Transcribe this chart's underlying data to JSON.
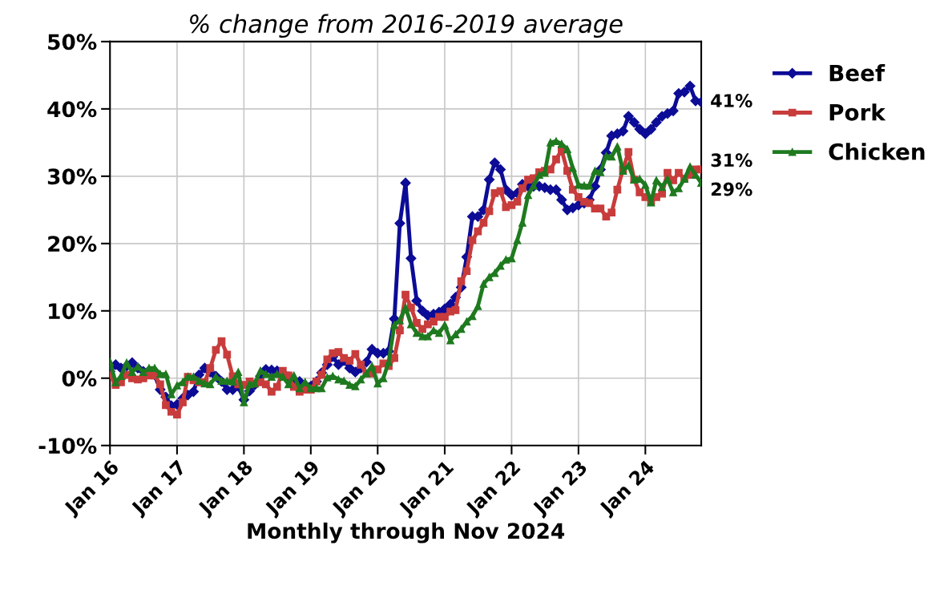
{
  "chart_data": {
    "type": "line",
    "title": "% change from 2016-2019 average",
    "xlabel": "Monthly through Nov 2024",
    "x": [
      "2016-01",
      "2016-02",
      "2016-03",
      "2016-04",
      "2016-05",
      "2016-06",
      "2016-07",
      "2016-08",
      "2016-09",
      "2016-10",
      "2016-11",
      "2016-12",
      "2017-01",
      "2017-02",
      "2017-03",
      "2017-04",
      "2017-05",
      "2017-06",
      "2017-07",
      "2017-08",
      "2017-09",
      "2017-10",
      "2017-11",
      "2017-12",
      "2018-01",
      "2018-02",
      "2018-03",
      "2018-04",
      "2018-05",
      "2018-06",
      "2018-07",
      "2018-08",
      "2018-09",
      "2018-10",
      "2018-11",
      "2018-12",
      "2019-01",
      "2019-02",
      "2019-03",
      "2019-04",
      "2019-05",
      "2019-06",
      "2019-07",
      "2019-08",
      "2019-09",
      "2019-10",
      "2019-11",
      "2019-12",
      "2020-01",
      "2020-02",
      "2020-03",
      "2020-04",
      "2020-05",
      "2020-06",
      "2020-07",
      "2020-08",
      "2020-09",
      "2020-10",
      "2020-11",
      "2020-12",
      "2021-01",
      "2021-02",
      "2021-03",
      "2021-04",
      "2021-05",
      "2021-06",
      "2021-07",
      "2021-08",
      "2021-09",
      "2021-10",
      "2021-11",
      "2021-12",
      "2022-01",
      "2022-02",
      "2022-03",
      "2022-04",
      "2022-05",
      "2022-06",
      "2022-07",
      "2022-08",
      "2022-09",
      "2022-10",
      "2022-11",
      "2022-12",
      "2023-01",
      "2023-02",
      "2023-03",
      "2023-04",
      "2023-05",
      "2023-06",
      "2023-07",
      "2023-08",
      "2023-09",
      "2023-10",
      "2023-11",
      "2023-12",
      "2024-01",
      "2024-02",
      "2024-03",
      "2024-04",
      "2024-05",
      "2024-06",
      "2024-07",
      "2024-08",
      "2024-09",
      "2024-10",
      "2024-11"
    ],
    "series": [
      {
        "name": "Beef",
        "color": "#0c0c96",
        "marker": "diamond",
        "values": [
          1,
          2,
          1.5,
          1.8,
          2.3,
          1.5,
          1,
          1,
          0.5,
          -1.7,
          -2.8,
          -4.1,
          -3.9,
          -3,
          -2.5,
          -2,
          0.5,
          1.5,
          0.9,
          0.3,
          -0.5,
          -1.7,
          -1.7,
          -1.2,
          -3.2,
          -1.9,
          -1,
          0.3,
          1.3,
          1.2,
          1.1,
          0.8,
          0.2,
          -0.2,
          -0.5,
          -1,
          -1.2,
          -0.5,
          0.8,
          2,
          3.2,
          2,
          2.6,
          1.5,
          0.9,
          1.5,
          2.4,
          4.3,
          3.7,
          3.7,
          4,
          8.8,
          23,
          29,
          17.8,
          11.5,
          10,
          9.3,
          9.5,
          9.8,
          10.3,
          11,
          12,
          13.5,
          18,
          24,
          24,
          25,
          29.5,
          32,
          31,
          28,
          27.2,
          27.5,
          28.8,
          28.5,
          28.5,
          28.5,
          28.3,
          28,
          28,
          26.5,
          25,
          25.3,
          25.7,
          26,
          26.5,
          28.5,
          31,
          33.5,
          36,
          36.3,
          36.7,
          38.9,
          38,
          37,
          36.3,
          37,
          38,
          38.9,
          39.3,
          39.7,
          42.3,
          42.5,
          43.4,
          41.2,
          41
        ]
      },
      {
        "name": "Pork",
        "color": "#c83c3c",
        "marker": "square",
        "values": [
          0.5,
          -1,
          -0.6,
          0.5,
          0,
          -0.2,
          0,
          0.4,
          0.4,
          -0.9,
          -4,
          -5,
          -5.4,
          -3.6,
          0.2,
          -0.3,
          -0.6,
          -0.6,
          1.5,
          4.2,
          5.5,
          3.5,
          0.3,
          -0.9,
          -1,
          -0.5,
          -0.8,
          -0.6,
          -0.9,
          -2,
          -1.3,
          1.1,
          0.4,
          -1.3,
          -2,
          -1.7,
          -1.7,
          -0.5,
          0.5,
          2.8,
          3.7,
          3.9,
          3,
          2.6,
          3.6,
          2,
          0.7,
          0.7,
          1.3,
          2.2,
          1.8,
          3,
          7.1,
          12.4,
          10.5,
          8.2,
          7.3,
          8,
          8.4,
          9.1,
          9.1,
          9.9,
          10.1,
          14.4,
          15.9,
          20.5,
          21.8,
          23.1,
          24.8,
          27.5,
          27.8,
          25.4,
          25.7,
          26.2,
          28.2,
          29.5,
          29.7,
          30.6,
          30.8,
          31,
          32.5,
          33.9,
          30.8,
          28,
          26.9,
          26.2,
          26,
          25.2,
          25.2,
          24,
          24.6,
          28,
          31,
          33.6,
          29.5,
          27.6,
          26.9,
          26.2,
          26.9,
          27.4,
          30.5,
          29.4,
          30.5,
          29.6,
          30.2,
          31,
          31
        ]
      },
      {
        "name": "Chicken",
        "color": "#1f7a1f",
        "marker": "triangle",
        "values": [
          2.4,
          -0.6,
          0.3,
          2.3,
          0.9,
          1.7,
          0.9,
          1.5,
          1.5,
          0.6,
          0.6,
          -2.4,
          -1.1,
          -0.6,
          0.2,
          0.2,
          -0.4,
          -0.8,
          -0.9,
          0.2,
          -0.4,
          -0.4,
          -0.5,
          0.9,
          -3.6,
          -0.9,
          -0.8,
          1.1,
          0.6,
          0.2,
          0.6,
          0.2,
          -0.9,
          0.4,
          -1.5,
          -0.6,
          -1.5,
          -1.5,
          -1.5,
          0.1,
          0.3,
          -0.2,
          -0.4,
          -1,
          -1.2,
          -0.2,
          0.7,
          1.8,
          -0.8,
          0,
          2.4,
          7.9,
          8.6,
          10.5,
          8,
          6.7,
          6.2,
          6.2,
          7.1,
          6.7,
          7.9,
          5.6,
          6.5,
          7.3,
          8.4,
          9.2,
          10.7,
          14,
          15,
          15.6,
          16.7,
          17.6,
          17.8,
          20.5,
          23.1,
          27.2,
          28.6,
          30.2,
          30.5,
          35,
          35.2,
          34.8,
          34,
          31.2,
          28.7,
          28.6,
          28.6,
          30.8,
          30.6,
          33,
          32.9,
          34.4,
          30.8,
          31.6,
          29.5,
          29.6,
          28.7,
          26.1,
          29.4,
          28.4,
          29.6,
          27.6,
          28.2,
          29.6,
          31.4,
          30.2,
          29
        ]
      }
    ],
    "annotations": [
      {
        "text": "41%",
        "x": "2024-11",
        "y": 41
      },
      {
        "text": "31%",
        "x": "2024-11",
        "y": 31
      },
      {
        "text": "29%",
        "x": "2024-11",
        "y": 29
      }
    ],
    "xlim": [
      "2016-01",
      "2024-11"
    ],
    "xticks": [
      {
        "value": "2016-01",
        "label": "Jan 16"
      },
      {
        "value": "2017-01",
        "label": "Jan 17"
      },
      {
        "value": "2018-01",
        "label": "Jan 18"
      },
      {
        "value": "2019-01",
        "label": "Jan 19"
      },
      {
        "value": "2020-01",
        "label": "Jan 20"
      },
      {
        "value": "2021-01",
        "label": "Jan 21"
      },
      {
        "value": "2022-01",
        "label": "Jan 22"
      },
      {
        "value": "2023-01",
        "label": "Jan 23"
      },
      {
        "value": "2024-01",
        "label": "Jan 24"
      }
    ],
    "ylim": [
      -10,
      50
    ],
    "yticks": [
      {
        "value": -10,
        "label": "-10%"
      },
      {
        "value": 0,
        "label": "0%"
      },
      {
        "value": 10,
        "label": "10%"
      },
      {
        "value": 20,
        "label": "20%"
      },
      {
        "value": 30,
        "label": "30%"
      },
      {
        "value": 40,
        "label": "40%"
      },
      {
        "value": 50,
        "label": "50%"
      }
    ],
    "grid": true,
    "legend": "right",
    "line_style": "solid"
  }
}
